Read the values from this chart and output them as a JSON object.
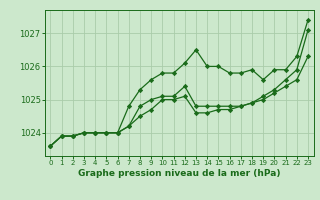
{
  "background_color": "#cce8cc",
  "plot_bg_color": "#cce8cc",
  "grid_color": "#aaccaa",
  "line_color": "#1a6b1a",
  "xlabel": "Graphe pression niveau de la mer (hPa)",
  "ylim": [
    1023.3,
    1027.7
  ],
  "xlim": [
    -0.5,
    23.5
  ],
  "yticks": [
    1024,
    1025,
    1026,
    1027
  ],
  "xticks": [
    0,
    1,
    2,
    3,
    4,
    5,
    6,
    7,
    8,
    9,
    10,
    11,
    12,
    13,
    14,
    15,
    16,
    17,
    18,
    19,
    20,
    21,
    22,
    23
  ],
  "series": [
    [
      1023.6,
      1023.9,
      1023.9,
      1024.0,
      1024.0,
      1024.0,
      1024.0,
      1024.8,
      1025.3,
      1025.6,
      1025.8,
      1025.8,
      1026.1,
      1026.5,
      1026.0,
      1026.0,
      1025.8,
      1025.8,
      1025.9,
      1025.6,
      1025.9,
      1025.9,
      1026.3,
      1027.4
    ],
    [
      1023.6,
      1023.9,
      1023.9,
      1024.0,
      1024.0,
      1024.0,
      1024.0,
      1024.2,
      1024.8,
      1025.0,
      1025.1,
      1025.1,
      1025.4,
      1024.8,
      1024.8,
      1024.8,
      1024.8,
      1024.8,
      1024.9,
      1025.0,
      1025.2,
      1025.4,
      1025.6,
      1026.3
    ],
    [
      1023.6,
      1023.9,
      1023.9,
      1024.0,
      1024.0,
      1024.0,
      1024.0,
      1024.2,
      1024.5,
      1024.7,
      1025.0,
      1025.0,
      1025.1,
      1024.6,
      1024.6,
      1024.7,
      1024.7,
      1024.8,
      1024.9,
      1025.1,
      1025.3,
      1025.6,
      1025.9,
      1027.1
    ]
  ],
  "marker": "D",
  "markersize": 2.2,
  "linewidth": 0.9,
  "xlabel_fontsize": 6.5,
  "ytick_fontsize": 6.0,
  "xtick_fontsize": 5.0
}
